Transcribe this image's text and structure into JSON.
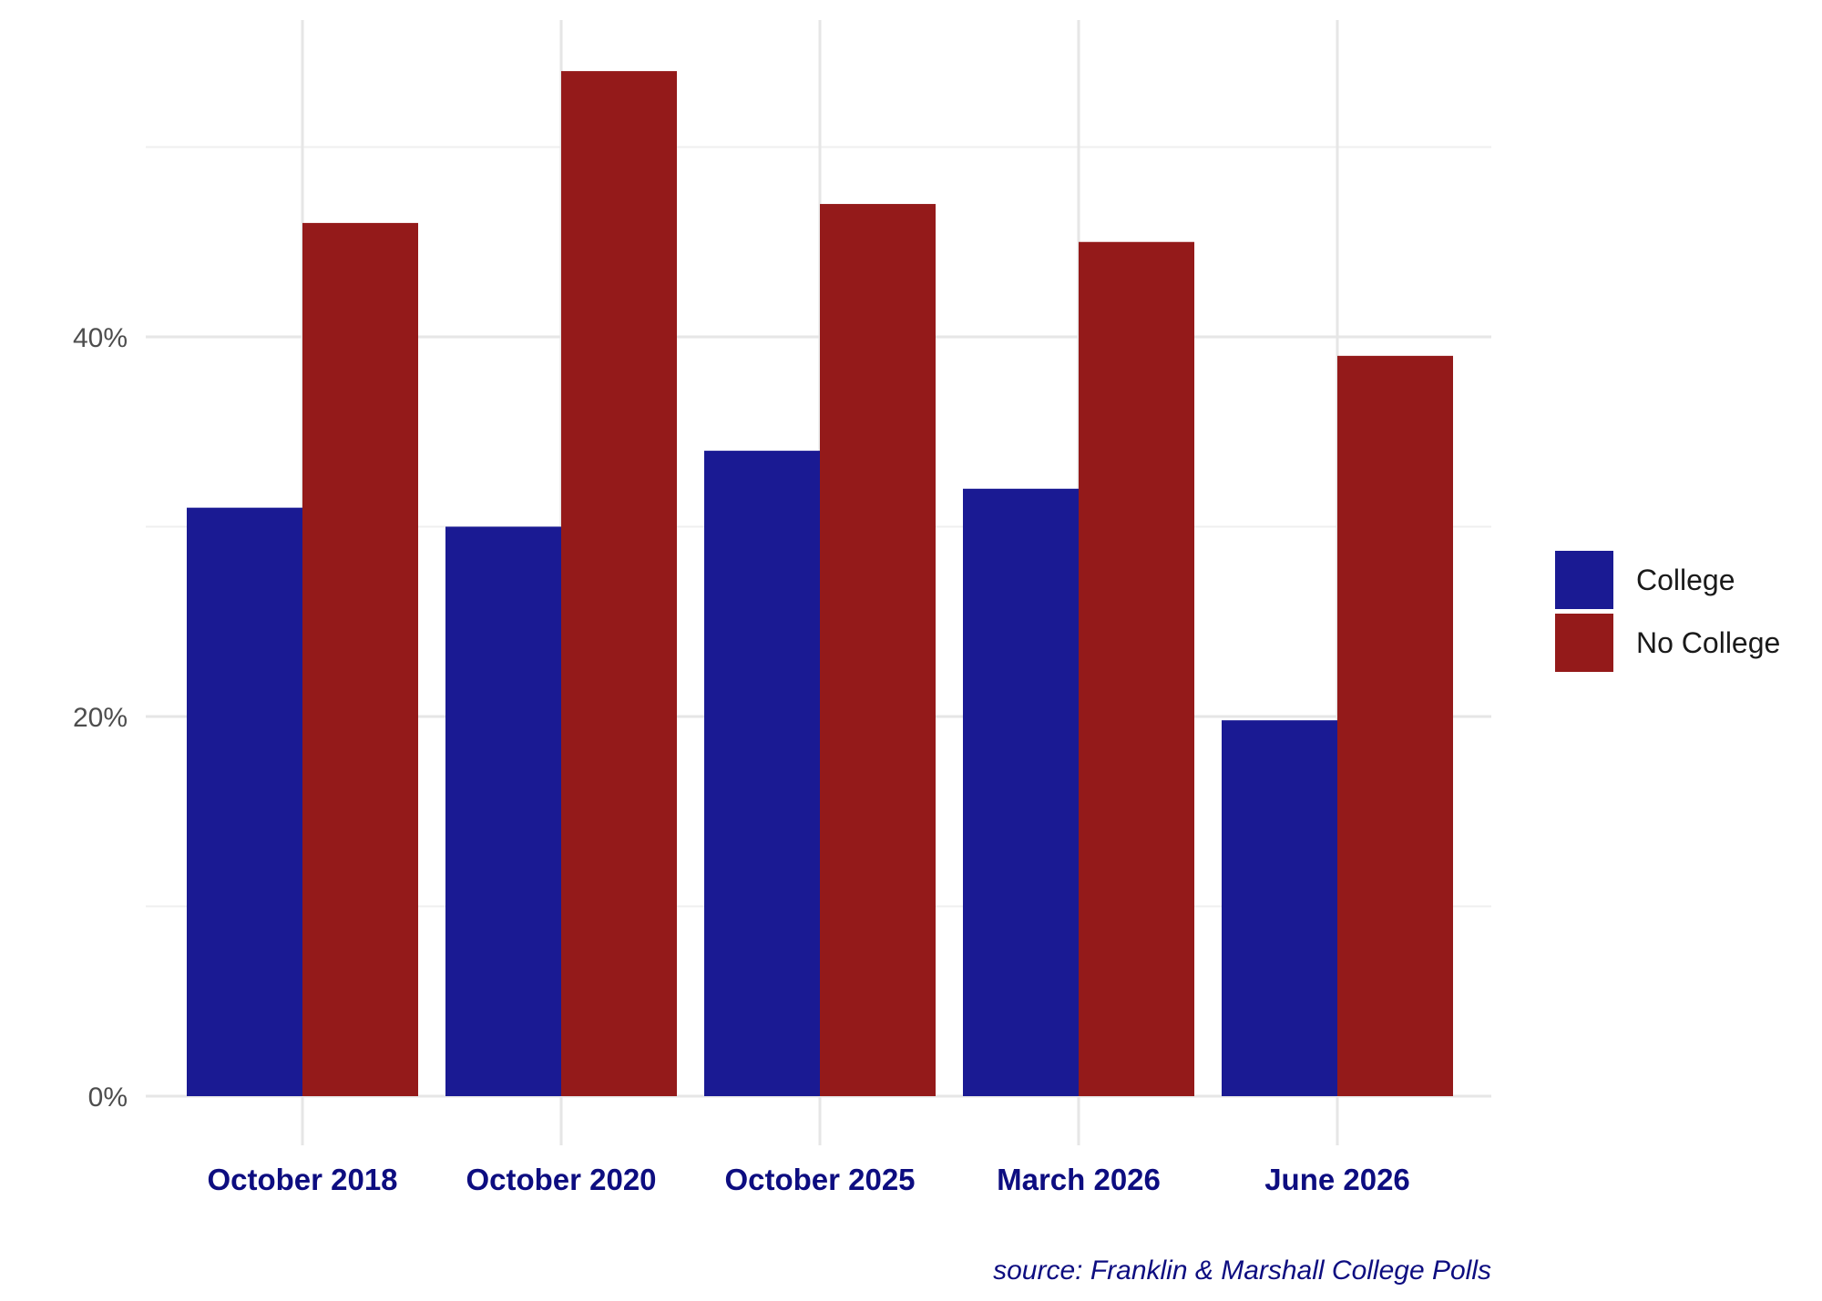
{
  "chart_data": {
    "type": "bar",
    "categories": [
      "October 2018",
      "October 2020",
      "October 2025",
      "March 2026",
      "June 2026"
    ],
    "series": [
      {
        "name": "College",
        "color": "#1a1a93",
        "values": [
          31,
          30,
          34,
          32,
          19.8
        ]
      },
      {
        "name": "No College",
        "color": "#941a1a",
        "values": [
          46,
          54,
          47,
          45,
          39
        ]
      }
    ],
    "yticks": [
      0,
      20,
      40
    ],
    "ytick_labels": [
      "0%",
      "20%",
      "40%"
    ],
    "ylim": [
      0,
      56
    ],
    "grid": true,
    "legend_position": "right",
    "caption": "source: Franklin & Marshall College Polls"
  }
}
